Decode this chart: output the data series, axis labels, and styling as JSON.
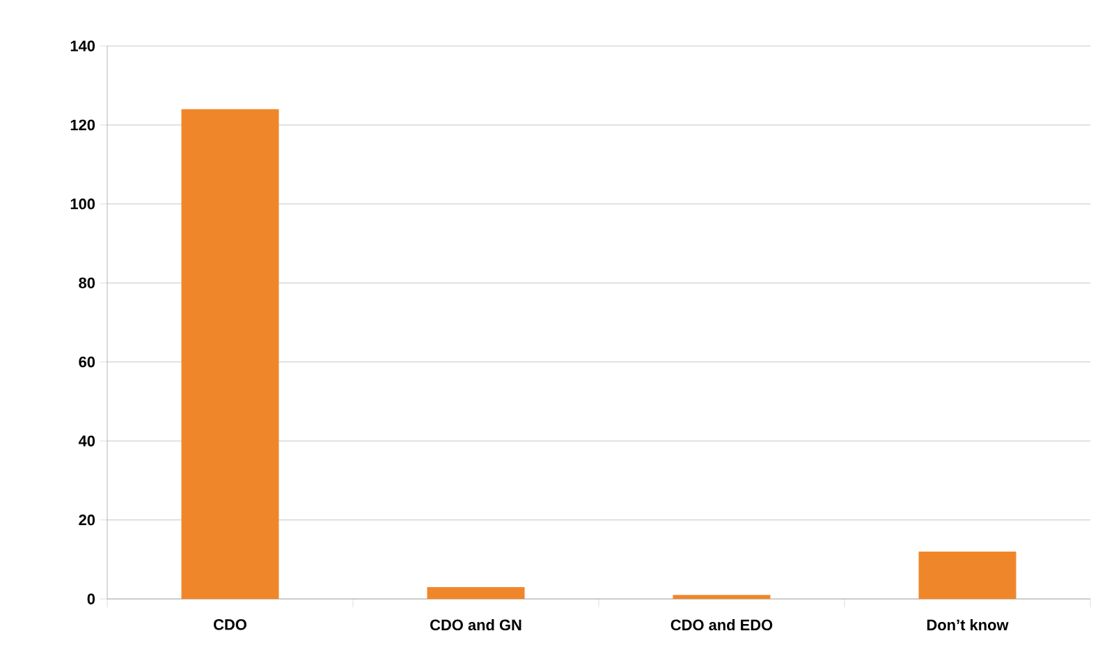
{
  "chart_data": {
    "type": "bar",
    "categories": [
      "CDO",
      "CDO and GN",
      "CDO and EDO",
      "Don’t know"
    ],
    "values": [
      124,
      3,
      1,
      12
    ],
    "color": "#f0862a",
    "ylim": [
      0,
      140
    ],
    "yticks": [
      0,
      20,
      40,
      60,
      80,
      100,
      120,
      140
    ],
    "grid": "y"
  }
}
